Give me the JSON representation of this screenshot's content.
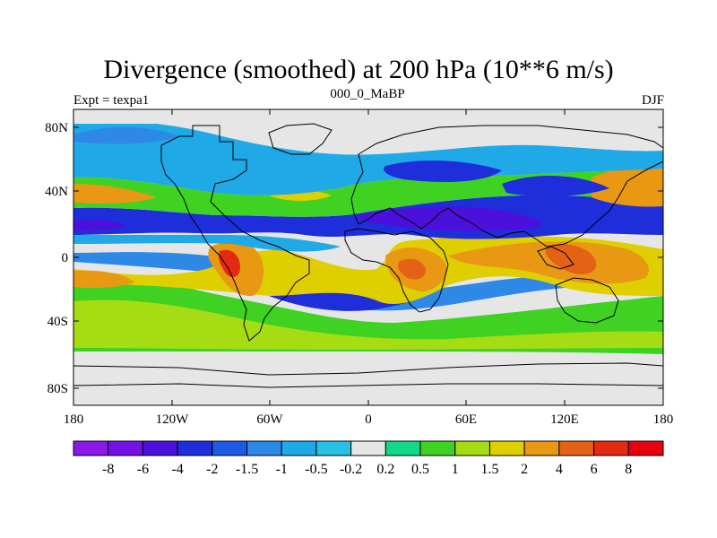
{
  "header": {
    "title": "Divergence (smoothed) at 200 hPa (10**6 m/s)",
    "subtitle": "000_0_MaBP",
    "left_label": "Expt = texpa1",
    "right_label": "DJF"
  },
  "map": {
    "projection": "cylindrical-equidistant",
    "lon_range": [
      -180,
      180
    ],
    "lat_range": [
      -90,
      90
    ],
    "lat_ticks": [
      "80N",
      "40N",
      "0",
      "40S",
      "80S"
    ],
    "lon_ticks": [
      "180",
      "120W",
      "60W",
      "0",
      "60E",
      "120E",
      "180"
    ],
    "background_color": "#e6e6e6"
  },
  "colorbar": {
    "labels": [
      "-8",
      "-6",
      "-4",
      "-2",
      "-1.5",
      "-1",
      "-0.5",
      "-0.2",
      "0.2",
      "0.5",
      "1",
      "1.5",
      "2",
      "4",
      "6",
      "8"
    ],
    "colors": [
      "#8b17e8",
      "#7412e6",
      "#4b10dc",
      "#1e2edb",
      "#1e5ae3",
      "#2e88e6",
      "#1fa9e6",
      "#29c0e6",
      "#e6e6e6",
      "#12d787",
      "#3fd223",
      "#a6dc14",
      "#e0cf00",
      "#e89812",
      "#e56116",
      "#e52a14",
      "#e8000f"
    ]
  }
}
